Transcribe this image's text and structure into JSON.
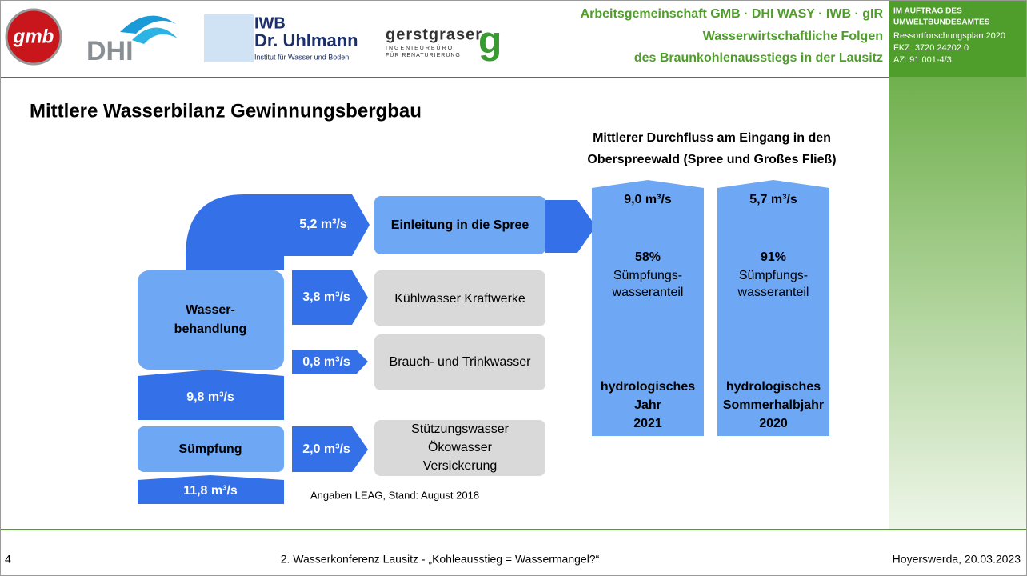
{
  "header": {
    "logos": {
      "gmb": "gmb",
      "dhi": "DHI",
      "iwb": [
        "IWB",
        "Dr. Uhlmann",
        "Institut für Wasser und Boden"
      ],
      "gerstgraser": [
        "gerstgraser",
        "INGENIEURBÜRO",
        "FÜR RENATURIERUNG",
        "g"
      ]
    },
    "consortium": [
      "Arbeitsgemeinschaft GMB · DHI WASY · IWB · gIR",
      "Wasserwirtschaftliche Folgen",
      "des Braunkohlenausstiegs in der Lausitz"
    ],
    "commission": [
      "IM AUFTRAG DES",
      "UMWELTBUNDESAMTES",
      "Ressortforschungsplan 2020",
      "FKZ: 3720 24202 0",
      "AZ: 91 001-4/3"
    ]
  },
  "slide": {
    "title": "Mittlere Wasserbilanz Gewinnungsbergbau",
    "outflow_heading": [
      "Mittlerer Durchfluss am Eingang in den",
      "Oberspreewald (Spree und Großes Fließ)"
    ],
    "sources": {
      "treatment": [
        "Wasser-",
        "behandlung"
      ],
      "treatment_flow": "9,8 m³/s",
      "drainage": "Sümpfung",
      "drainage_flow": "11,8 m³/s"
    },
    "flows": [
      {
        "flow": "5,2 m³/s",
        "target": [
          "Einleitung in die Spree"
        ]
      },
      {
        "flow": "3,8 m³/s",
        "target": [
          "Kühlwasser Kraftwerke"
        ]
      },
      {
        "flow": "0,8 m³/s",
        "target": [
          "Brauch- und Trinkwasser"
        ]
      },
      {
        "flow": "2,0 m³/s",
        "target": [
          "Stützungswasser",
          "Ökowasser",
          "Versickerung"
        ]
      }
    ],
    "columns": [
      {
        "flow": "9,0 m³/s",
        "share": "58%",
        "share_label": [
          "Sümpfungs-",
          "wasseranteil"
        ],
        "period": [
          "hydrologisches",
          "Jahr",
          "2021"
        ]
      },
      {
        "flow": "5,7 m³/s",
        "share": "91%",
        "share_label": [
          "Sümpfungs-",
          "wasseranteil"
        ],
        "period": [
          "hydrologisches",
          "Sommerhalbjahr",
          "2020"
        ]
      }
    ],
    "note": "Angaben LEAG, Stand: August 2018"
  },
  "footer": {
    "page": "4",
    "event": "2. Wasserkonferenz Lausitz - „Kohleausstieg = Wassermangel?“",
    "place_date": "Hoyerswerda, 20.03.2023"
  }
}
